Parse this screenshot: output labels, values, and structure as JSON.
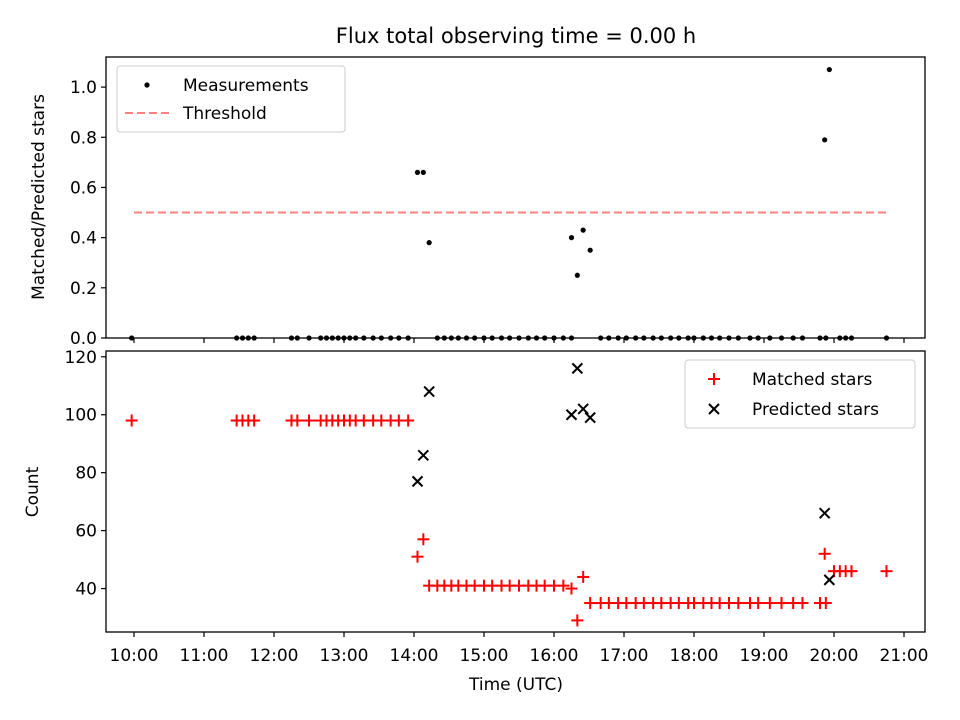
{
  "title": "Flux total observing time = 0.00 h",
  "colors": {
    "measure": "#000000",
    "threshold": "#ff8080",
    "matched": "#ff0000",
    "predicted": "#000000"
  },
  "chart_data": [
    {
      "type": "scatter",
      "ylabel": "Matched/Predicted stars",
      "ylim": [
        0,
        1.12
      ],
      "yticks": [
        0.0,
        0.2,
        0.4,
        0.6,
        0.8,
        1.0
      ],
      "ytick_labels": [
        "0.0",
        "0.2",
        "0.4",
        "0.6",
        "0.8",
        "1.0"
      ],
      "xlim_hours": [
        9.6,
        21.3
      ],
      "legend": [
        "Measurements",
        "Threshold"
      ],
      "legend_position": "upper-left",
      "threshold": {
        "y": 0.5,
        "x_start": "10:00",
        "x_end": "20:45"
      },
      "series": [
        {
          "name": "Measurements",
          "points": [
            [
              "09:58",
              0
            ],
            [
              "11:28",
              0
            ],
            [
              "11:33",
              0
            ],
            [
              "11:38",
              0
            ],
            [
              "11:43",
              0
            ],
            [
              "12:15",
              0
            ],
            [
              "12:20",
              0
            ],
            [
              "12:30",
              0
            ],
            [
              "12:40",
              0
            ],
            [
              "12:45",
              0
            ],
            [
              "12:50",
              0
            ],
            [
              "12:55",
              0
            ],
            [
              "13:00",
              0
            ],
            [
              "13:05",
              0
            ],
            [
              "13:10",
              0
            ],
            [
              "13:17",
              0
            ],
            [
              "13:25",
              0
            ],
            [
              "13:32",
              0
            ],
            [
              "13:40",
              0
            ],
            [
              "13:47",
              0
            ],
            [
              "13:55",
              0
            ],
            [
              "14:03",
              0.66
            ],
            [
              "14:08",
              0.66
            ],
            [
              "14:13",
              0.38
            ],
            [
              "14:20",
              0
            ],
            [
              "14:26",
              0
            ],
            [
              "14:32",
              0
            ],
            [
              "14:38",
              0
            ],
            [
              "14:45",
              0
            ],
            [
              "14:52",
              0
            ],
            [
              "15:00",
              0
            ],
            [
              "15:07",
              0
            ],
            [
              "15:15",
              0
            ],
            [
              "15:22",
              0
            ],
            [
              "15:30",
              0
            ],
            [
              "15:38",
              0
            ],
            [
              "15:45",
              0
            ],
            [
              "15:52",
              0
            ],
            [
              "16:00",
              0
            ],
            [
              "16:08",
              0
            ],
            [
              "16:15",
              0
            ],
            [
              "16:15",
              0.4
            ],
            [
              "16:20",
              0.25
            ],
            [
              "16:25",
              0.43
            ],
            [
              "16:31",
              0.35
            ],
            [
              "16:40",
              0
            ],
            [
              "16:47",
              0
            ],
            [
              "16:55",
              0
            ],
            [
              "17:02",
              0
            ],
            [
              "17:10",
              0
            ],
            [
              "17:17",
              0
            ],
            [
              "17:25",
              0
            ],
            [
              "17:32",
              0
            ],
            [
              "17:40",
              0
            ],
            [
              "17:47",
              0
            ],
            [
              "17:55",
              0
            ],
            [
              "18:00",
              0
            ],
            [
              "18:08",
              0
            ],
            [
              "18:15",
              0
            ],
            [
              "18:22",
              0
            ],
            [
              "18:30",
              0
            ],
            [
              "18:38",
              0
            ],
            [
              "18:48",
              0
            ],
            [
              "18:55",
              0
            ],
            [
              "19:05",
              0
            ],
            [
              "19:15",
              0
            ],
            [
              "19:25",
              0
            ],
            [
              "19:33",
              0
            ],
            [
              "19:48",
              0
            ],
            [
              "19:53",
              0
            ],
            [
              "19:52",
              0.79
            ],
            [
              "19:56",
              1.07
            ],
            [
              "20:05",
              0
            ],
            [
              "20:10",
              0
            ],
            [
              "20:15",
              0
            ],
            [
              "20:45",
              0
            ]
          ]
        }
      ]
    },
    {
      "type": "scatter",
      "ylabel": "Count",
      "xlabel": "Time (UTC)",
      "ylim": [
        25,
        122
      ],
      "yticks": [
        40,
        60,
        80,
        100,
        120
      ],
      "ytick_labels": [
        "40",
        "60",
        "80",
        "100",
        "120"
      ],
      "xlim_hours": [
        9.6,
        21.3
      ],
      "xticks": [
        "10:00",
        "11:00",
        "12:00",
        "13:00",
        "14:00",
        "15:00",
        "16:00",
        "17:00",
        "18:00",
        "19:00",
        "20:00",
        "21:00"
      ],
      "legend": [
        "Matched stars",
        "Predicted stars"
      ],
      "legend_position": "upper-right",
      "series": [
        {
          "name": "Matched stars",
          "points": [
            [
              "09:58",
              98
            ],
            [
              "11:28",
              98
            ],
            [
              "11:33",
              98
            ],
            [
              "11:38",
              98
            ],
            [
              "11:43",
              98
            ],
            [
              "12:15",
              98
            ],
            [
              "12:20",
              98
            ],
            [
              "12:30",
              98
            ],
            [
              "12:40",
              98
            ],
            [
              "12:45",
              98
            ],
            [
              "12:50",
              98
            ],
            [
              "12:55",
              98
            ],
            [
              "13:00",
              98
            ],
            [
              "13:05",
              98
            ],
            [
              "13:10",
              98
            ],
            [
              "13:17",
              98
            ],
            [
              "13:25",
              98
            ],
            [
              "13:32",
              98
            ],
            [
              "13:40",
              98
            ],
            [
              "13:47",
              98
            ],
            [
              "13:55",
              98
            ],
            [
              "14:03",
              51
            ],
            [
              "14:08",
              57
            ],
            [
              "14:13",
              41
            ],
            [
              "14:20",
              41
            ],
            [
              "14:26",
              41
            ],
            [
              "14:32",
              41
            ],
            [
              "14:38",
              41
            ],
            [
              "14:45",
              41
            ],
            [
              "14:52",
              41
            ],
            [
              "15:00",
              41
            ],
            [
              "15:07",
              41
            ],
            [
              "15:15",
              41
            ],
            [
              "15:22",
              41
            ],
            [
              "15:30",
              41
            ],
            [
              "15:38",
              41
            ],
            [
              "15:45",
              41
            ],
            [
              "15:52",
              41
            ],
            [
              "16:00",
              41
            ],
            [
              "16:08",
              41
            ],
            [
              "16:15",
              40
            ],
            [
              "16:20",
              29
            ],
            [
              "16:25",
              44
            ],
            [
              "16:31",
              35
            ],
            [
              "16:40",
              35
            ],
            [
              "16:47",
              35
            ],
            [
              "16:55",
              35
            ],
            [
              "17:02",
              35
            ],
            [
              "17:10",
              35
            ],
            [
              "17:17",
              35
            ],
            [
              "17:25",
              35
            ],
            [
              "17:32",
              35
            ],
            [
              "17:40",
              35
            ],
            [
              "17:47",
              35
            ],
            [
              "17:55",
              35
            ],
            [
              "18:00",
              35
            ],
            [
              "18:08",
              35
            ],
            [
              "18:15",
              35
            ],
            [
              "18:22",
              35
            ],
            [
              "18:30",
              35
            ],
            [
              "18:38",
              35
            ],
            [
              "18:48",
              35
            ],
            [
              "18:55",
              35
            ],
            [
              "19:05",
              35
            ],
            [
              "19:15",
              35
            ],
            [
              "19:25",
              35
            ],
            [
              "19:33",
              35
            ],
            [
              "19:48",
              35
            ],
            [
              "19:53",
              35
            ],
            [
              "19:52",
              52
            ],
            [
              "20:00",
              46
            ],
            [
              "20:05",
              46
            ],
            [
              "20:10",
              46
            ],
            [
              "20:15",
              46
            ],
            [
              "20:45",
              46
            ]
          ]
        },
        {
          "name": "Predicted stars",
          "points": [
            [
              "14:03",
              77
            ],
            [
              "14:08",
              86
            ],
            [
              "14:13",
              108
            ],
            [
              "16:15",
              100
            ],
            [
              "16:20",
              116
            ],
            [
              "16:25",
              102
            ],
            [
              "16:31",
              99
            ],
            [
              "19:52",
              66
            ],
            [
              "19:56",
              43
            ]
          ]
        }
      ]
    }
  ]
}
